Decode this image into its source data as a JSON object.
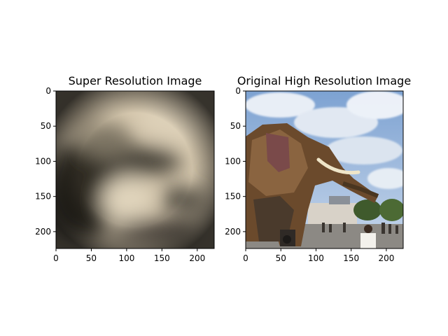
{
  "chart_data": [
    {
      "type": "image",
      "title": "Super Resolution Image",
      "xlim": [
        0,
        224
      ],
      "ylim": [
        224,
        0
      ],
      "xticks": [
        0,
        50,
        100,
        150,
        200
      ],
      "yticks": [
        0,
        50,
        100,
        150,
        200
      ],
      "image_description": "blurry sepia image",
      "colors": {
        "background": "#d8cbb2",
        "dark": "#2a2620"
      }
    },
    {
      "type": "image",
      "title": "Original High Resolution Image",
      "xlim": [
        0,
        224
      ],
      "ylim": [
        224,
        0
      ],
      "xticks": [
        0,
        50,
        100,
        150,
        200
      ],
      "yticks": [
        0,
        50,
        100,
        150,
        200
      ],
      "image_description": "mechanical elephant under cloudy blue sky",
      "colors": {
        "sky": "#8fb0d8",
        "cloud": "#e8eef6",
        "elephant": "#6b4a2e",
        "ground": "#8a8680"
      }
    }
  ]
}
